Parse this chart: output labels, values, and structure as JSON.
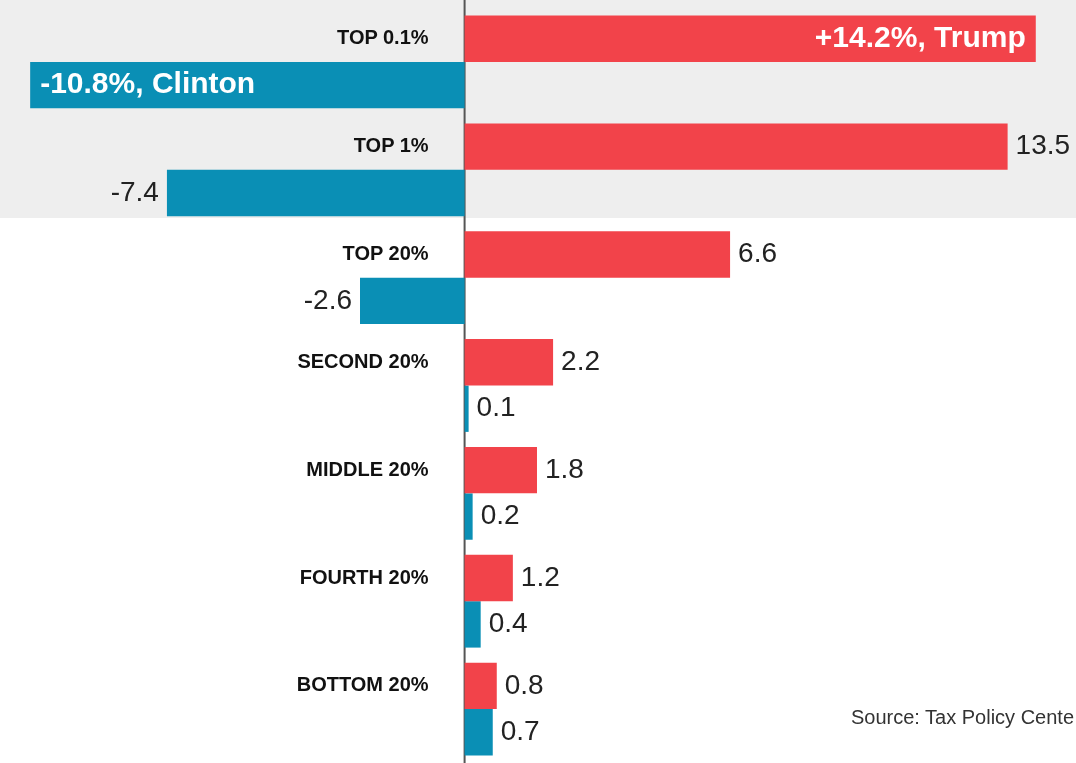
{
  "chart_data": {
    "type": "bar",
    "orientation": "horizontal",
    "categories": [
      "TOP 0.1%",
      "TOP 1%",
      "TOP 20%",
      "SECOND 20%",
      "MIDDLE 20%",
      "FOURTH 20%",
      "BOTTOM 20%"
    ],
    "series": [
      {
        "color": "#f2434a",
        "values": [
          14.2,
          13.5,
          6.6,
          2.2,
          1.8,
          1.2,
          0.8
        ],
        "value_labels": [
          "+14.2%, Trump",
          "13.5",
          "6.6",
          "2.2",
          "1.8",
          "1.2",
          "0.8"
        ]
      },
      {
        "color": "#0a8fb5",
        "values": [
          -10.8,
          -7.4,
          -2.6,
          0.1,
          0.2,
          0.4,
          0.7
        ],
        "value_labels": [
          "-10.8%, Clinton",
          "-7.4",
          "-2.6",
          "0.1",
          "0.2",
          "0.4",
          "0.7"
        ]
      }
    ],
    "xlim": [
      -11.55,
      15.2
    ],
    "legend": false,
    "annotations": [
      "Source: Tax Policy Cente"
    ]
  }
}
